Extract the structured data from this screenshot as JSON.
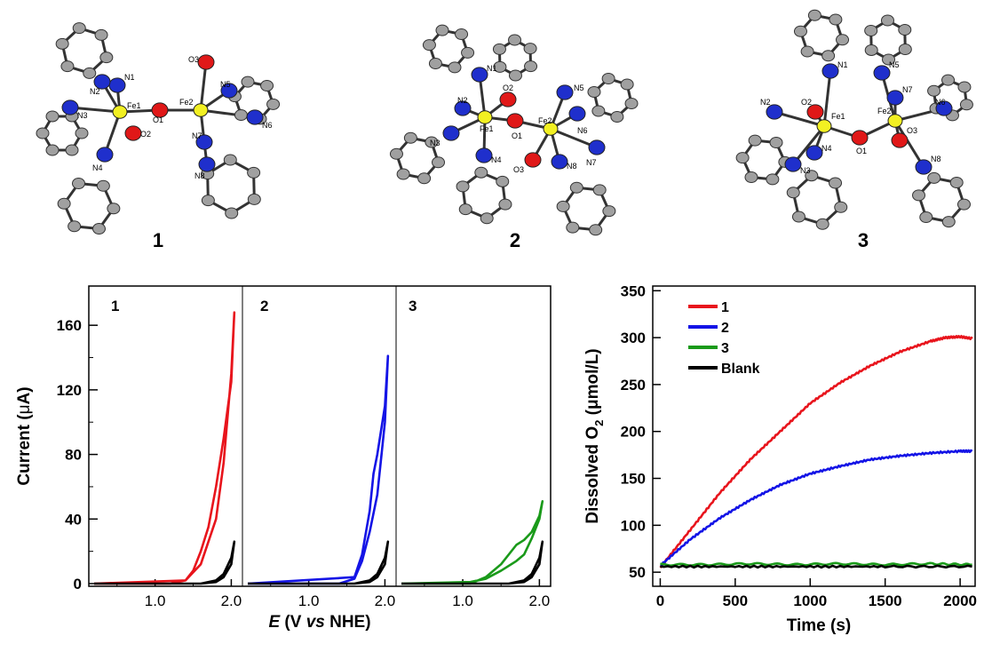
{
  "structures": [
    {
      "number": "1",
      "atoms": [
        "N1",
        "N2",
        "N3",
        "N4",
        "Fe1",
        "O2",
        "O1",
        "Fe2",
        "O3",
        "N5",
        "N6",
        "N7",
        "N8"
      ]
    },
    {
      "number": "2",
      "atoms": [
        "N1",
        "O2",
        "N2",
        "N3",
        "Fe1",
        "N4",
        "O1",
        "Fe2",
        "N5",
        "N6",
        "N7",
        "N8",
        "O3"
      ]
    },
    {
      "number": "3",
      "atoms": [
        "N1",
        "N5",
        "N2",
        "O2",
        "N7",
        "N6",
        "Fe1",
        "Fe2",
        "O3",
        "N4",
        "O1",
        "N3",
        "N8"
      ]
    }
  ],
  "chart_data": [
    {
      "type": "line",
      "panels": [
        {
          "label": "1",
          "trace_color": "#e8141c"
        },
        {
          "label": "2",
          "trace_color": "#1414e6"
        },
        {
          "label": "3",
          "trace_color": "#1a9a1a"
        }
      ],
      "ylabel_prefix": "Current (",
      "ylabel_greek": "μ",
      "ylabel_suffix": "A)",
      "xlabel_italic": "E",
      "xlabel_mid": " (V ",
      "xlabel_italic2": "vs",
      "xlabel_end": " NHE)",
      "x_ticks": [
        "1.0",
        "2.0"
      ],
      "y_ticks": [
        "0",
        "40",
        "80",
        "120",
        "160"
      ],
      "ylim": [
        0,
        170
      ],
      "series": [
        {
          "panel": "1",
          "color": "#e8141c",
          "loop": true,
          "x_forward": [
            0.2,
            1.2,
            1.4,
            1.6,
            1.8,
            1.9,
            2.0,
            2.04
          ],
          "y_forward": [
            0,
            0,
            2,
            12,
            40,
            75,
            130,
            168
          ],
          "x_return": [
            2.04,
            2.0,
            1.9,
            1.8,
            1.7,
            1.6,
            1.5,
            1.4,
            0.2
          ],
          "y_return": [
            168,
            125,
            90,
            60,
            35,
            20,
            8,
            2,
            0
          ]
        },
        {
          "panel": "2",
          "color": "#1414e6",
          "loop": true,
          "x_forward": [
            0.2,
            1.4,
            1.6,
            1.7,
            1.8,
            1.9,
            2.0,
            2.04
          ],
          "y_forward": [
            0,
            0,
            3,
            14,
            32,
            55,
            100,
            141
          ],
          "x_return": [
            2.04,
            2.0,
            1.9,
            1.85,
            1.8,
            1.7,
            1.6,
            0.2
          ],
          "y_return": [
            141,
            110,
            80,
            68,
            45,
            18,
            4,
            0
          ]
        },
        {
          "panel": "3",
          "color": "#1a9a1a",
          "loop": true,
          "x_forward": [
            0.2,
            1.1,
            1.3,
            1.5,
            1.7,
            1.8,
            1.9,
            2.0,
            2.04
          ],
          "y_forward": [
            0,
            0,
            4,
            12,
            24,
            27,
            32,
            42,
            51
          ],
          "x_return": [
            2.04,
            2.0,
            1.9,
            1.8,
            1.7,
            1.5,
            1.3,
            1.1,
            0.2
          ],
          "y_return": [
            51,
            40,
            28,
            18,
            14,
            8,
            3,
            1,
            0
          ]
        },
        {
          "panel": "all",
          "color": "#000000",
          "loop": true,
          "name": "",
          "x_forward": [
            0.2,
            1.6,
            1.8,
            1.9,
            2.0,
            2.04
          ],
          "y_forward": [
            0,
            0,
            2,
            6,
            16,
            26
          ],
          "x_return": [
            2.04,
            2.0,
            1.9,
            1.8,
            1.6,
            0.2
          ],
          "y_return": [
            26,
            12,
            4,
            1,
            0,
            0
          ]
        }
      ]
    },
    {
      "type": "line",
      "ylabel_main": "Dissolved O",
      "ylabel_sub": "2",
      "ylabel_unit": " (μmol/L)",
      "xlabel": "Time (s)",
      "x_ticks": [
        "0",
        "500",
        "1000",
        "1500",
        "2000"
      ],
      "y_ticks": [
        "50",
        "100",
        "150",
        "200",
        "250",
        "300",
        "350"
      ],
      "xlim": [
        -50,
        2100
      ],
      "ylim": [
        35,
        355
      ],
      "series": [
        {
          "name": "1",
          "color": "#e8141c",
          "x": [
            0,
            200,
            400,
            600,
            800,
            1000,
            1200,
            1400,
            1600,
            1800,
            1900,
            2000,
            2080
          ],
          "y": [
            55,
            95,
            135,
            170,
            200,
            230,
            252,
            270,
            285,
            296,
            300,
            301,
            299
          ]
        },
        {
          "name": "2",
          "color": "#1414e6",
          "x": [
            0,
            200,
            400,
            600,
            800,
            1000,
            1200,
            1400,
            1600,
            1800,
            2000,
            2080
          ],
          "y": [
            57,
            85,
            108,
            127,
            143,
            155,
            163,
            170,
            174,
            177,
            179,
            179
          ]
        },
        {
          "name": "3",
          "color": "#1a9a1a",
          "x": [
            0,
            300,
            600,
            900,
            1200,
            1500,
            1800,
            2080
          ],
          "y": [
            58,
            58,
            59,
            58,
            59,
            58,
            59,
            58
          ]
        },
        {
          "name": "Blank",
          "color": "#000000",
          "x": [
            0,
            500,
            1000,
            1500,
            2080
          ],
          "y": [
            56,
            56,
            56,
            56,
            56
          ]
        }
      ]
    }
  ]
}
